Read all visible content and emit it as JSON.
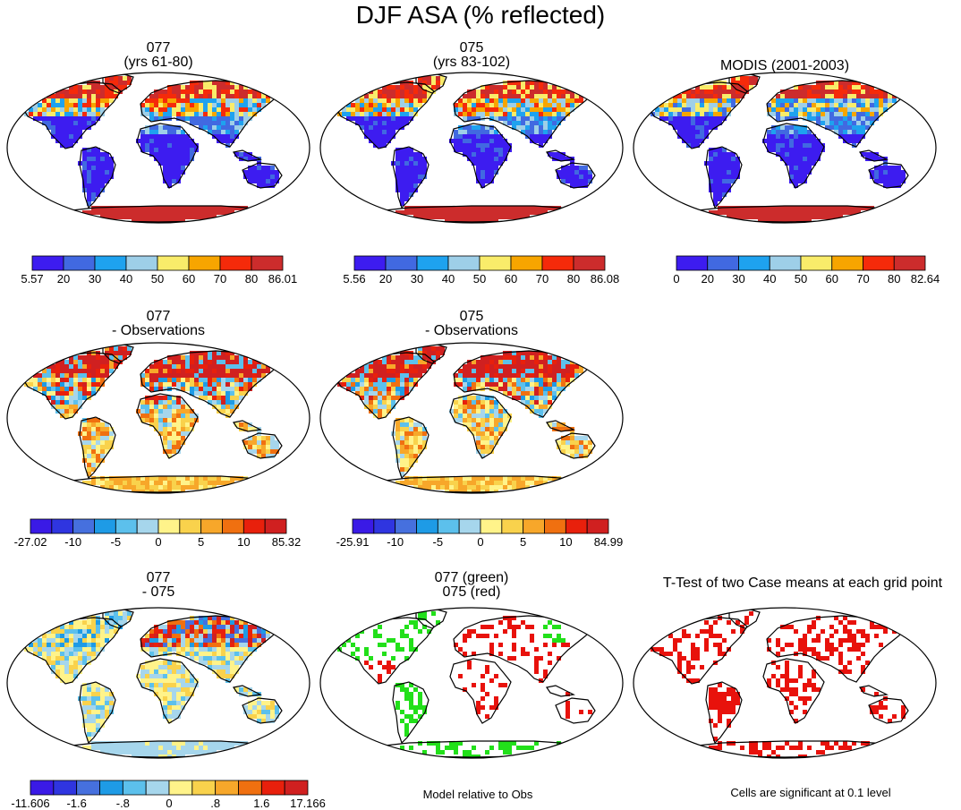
{
  "figure": {
    "title": "DJF ASA (% reflected)",
    "footers": [
      "Model relative to Obs",
      "Cells are significant at 0.1 level"
    ]
  },
  "palettes": {
    "absolute": [
      "#3d1cf0",
      "#4169e1",
      "#1ea2ef",
      "#9ecfe8",
      "#f9ec6a",
      "#f7a500",
      "#f52a0a",
      "#cc2c2c"
    ],
    "difference": [
      "#3a1ae6",
      "#2f35e0",
      "#4670de",
      "#1e9be6",
      "#5cc0ec",
      "#a6d6ec",
      "#fff38a",
      "#f9d24c",
      "#f7a72a",
      "#f07010",
      "#e8200c",
      "#d02020"
    ],
    "significance_red": "#e8120c",
    "significance_green": "#22e01a"
  },
  "chart_data": [
    {
      "type": "heatmap",
      "id": "p077",
      "title_lines": [
        "077",
        "(yrs 61-80)"
      ],
      "field": "absolute",
      "colorbar": {
        "palette": "absolute",
        "labels": [
          "5.57",
          "20",
          "30",
          "40",
          "50",
          "60",
          "70",
          "80",
          "86.01"
        ]
      }
    },
    {
      "type": "heatmap",
      "id": "p075",
      "title_lines": [
        "075",
        "(yrs 83-102)"
      ],
      "field": "absolute",
      "colorbar": {
        "palette": "absolute",
        "labels": [
          "5.56",
          "20",
          "30",
          "40",
          "50",
          "60",
          "70",
          "80",
          "86.08"
        ]
      }
    },
    {
      "type": "heatmap",
      "id": "pmodis",
      "title_lines": [
        "MODIS (2001-2003)"
      ],
      "field": "absolute_obs",
      "colorbar": {
        "palette": "absolute",
        "labels": [
          "0",
          "20",
          "30",
          "40",
          "50",
          "60",
          "70",
          "80",
          "82.64"
        ]
      }
    },
    {
      "type": "heatmap",
      "id": "p077obs",
      "title_lines": [
        "077",
        "- Observations"
      ],
      "field": "difference_obs",
      "colorbar": {
        "palette": "difference",
        "labels": [
          "-27.02",
          "-10",
          "-5",
          "0",
          "5",
          "10",
          "85.32"
        ]
      }
    },
    {
      "type": "heatmap",
      "id": "p075obs",
      "title_lines": [
        "075",
        "- Observations"
      ],
      "field": "difference_obs",
      "colorbar": {
        "palette": "difference",
        "labels": [
          "-25.91",
          "-10",
          "-5",
          "0",
          "5",
          "10",
          "84.99"
        ]
      }
    },
    {
      "type": "heatmap",
      "id": "pdiff",
      "title_lines": [
        "077",
        "- 075"
      ],
      "field": "difference_cases",
      "colorbar": {
        "palette": "difference",
        "labels": [
          "-11.606",
          "-1.6",
          "-.8",
          "0",
          ".8",
          "1.6",
          "17.166"
        ]
      }
    },
    {
      "type": "heatmap",
      "id": "prel",
      "title_lines": [
        "077 (green)",
        "075 (red)"
      ],
      "field": "relative_to_obs",
      "legend": [
        "077 (green)",
        "075 (red)"
      ]
    },
    {
      "type": "heatmap",
      "id": "pttest",
      "title_lines": [
        "T-Test of two Case means at each grid point"
      ],
      "field": "significance"
    }
  ]
}
